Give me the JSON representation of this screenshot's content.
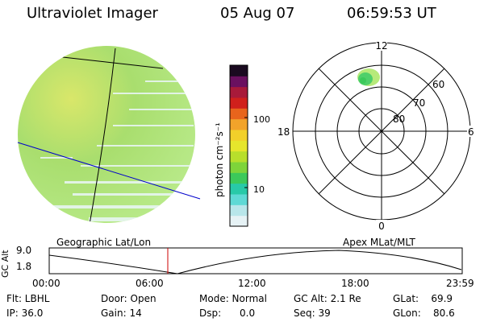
{
  "header": {
    "instrument": "Ultraviolet Imager",
    "date": "05 Aug 07",
    "time": "06:59:53 UT"
  },
  "colorbar": {
    "unit_label": "photon cm⁻²s⁻¹",
    "ticks": [
      "100",
      "10"
    ],
    "colors": [
      "#e6f2f5",
      "#b8e6ea",
      "#5fd9d5",
      "#28c9a8",
      "#3cc95a",
      "#7ed43a",
      "#b8df2c",
      "#e6e62c",
      "#f2d02a",
      "#f2a32a",
      "#e8641c",
      "#d0201c",
      "#a81a3a",
      "#6a1060",
      "#1a0a20"
    ]
  },
  "earth_image": {
    "colors": {
      "disk_low": "#b9ea8a",
      "disk_mid": "#9cdc6a",
      "disk_high": "#d9e76a",
      "streak": "#eaf6f8",
      "geo_line": "#000000",
      "terminator": "#0000cc"
    }
  },
  "polar_plot": {
    "labels": {
      "top": "12",
      "left": "18",
      "right": "6",
      "bottom": "0",
      "lat_60": "60",
      "lat_70": "70",
      "lat_80": "80"
    }
  },
  "coordinate_labels": {
    "left": "Geographic Lat/Lon",
    "right": "Apex MLat/MLT"
  },
  "altitude_plot": {
    "ylabel": "GC Alt",
    "y_ticks": [
      "9.0",
      "1.8"
    ],
    "x_ticks": [
      "00:00",
      "06:00",
      "12:00",
      "18:00",
      "23:59"
    ],
    "marker_color": "#cc0000"
  },
  "status": {
    "filter": "Flt: LBHL",
    "ip": "IP: 36.0",
    "door": "Door: Open",
    "gain": "Gain: 14",
    "mode": "Mode: Normal",
    "dsp": "Dsp:      0.0",
    "gc_alt": "GC Alt: 2.1 Re",
    "seq": "Seq: 39",
    "glat": "GLat:    69.9",
    "glon": "GLon:    80.6"
  }
}
